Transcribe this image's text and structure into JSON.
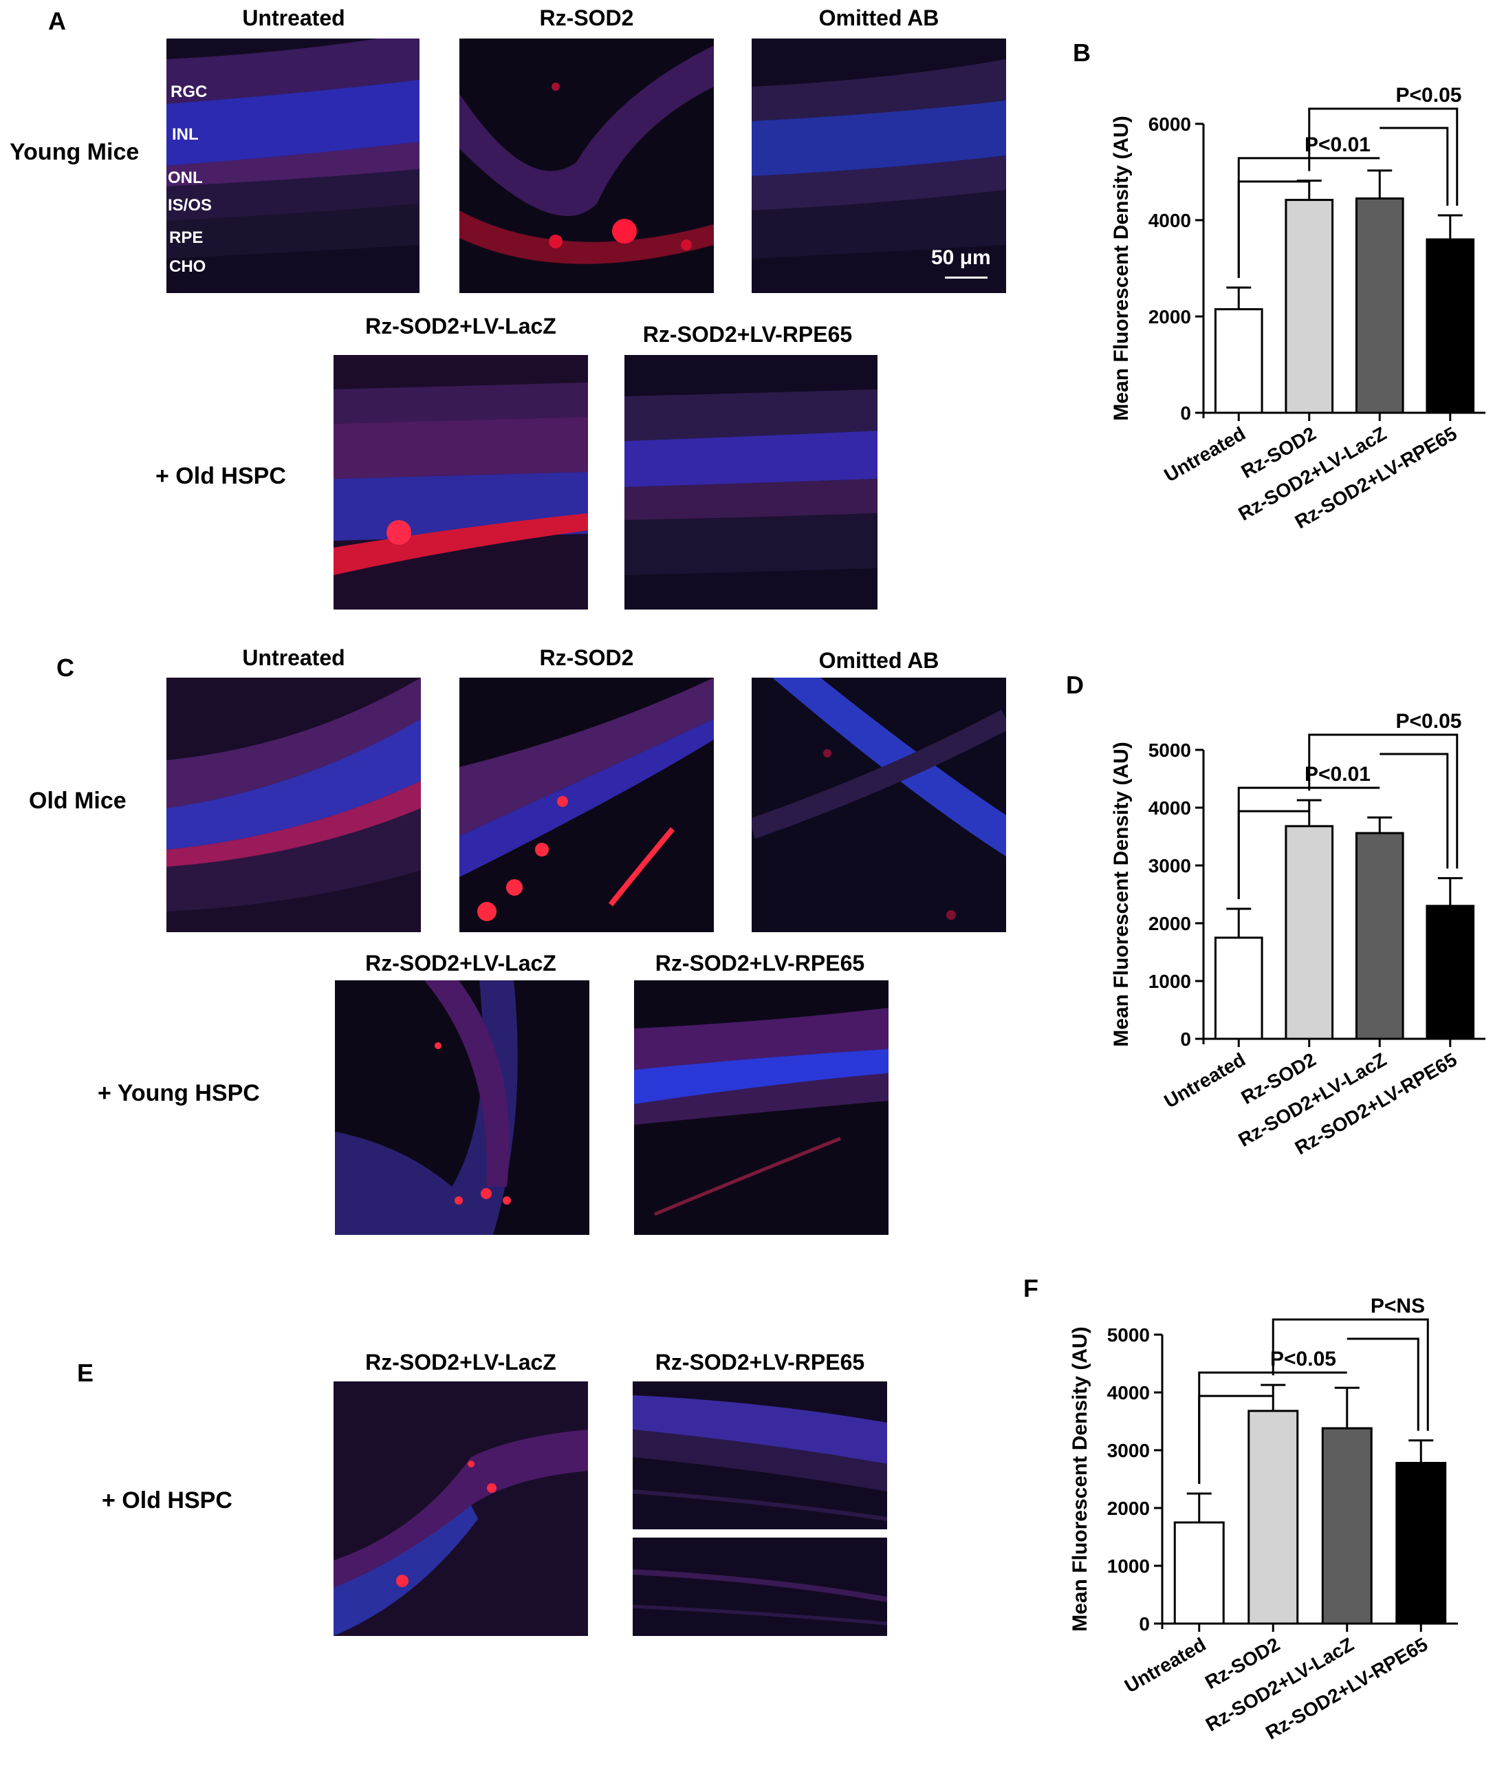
{
  "panels": {
    "A": {
      "letter": "A",
      "row_label": "Young Mice",
      "col_titles": [
        "Untreated",
        "Rz-SOD2",
        "Omitted AB"
      ],
      "layer_labels": [
        "RGC",
        "INL",
        "ONL",
        "IS/OS",
        "RPE",
        "CHO"
      ],
      "scale_bar": "50 μm",
      "hspc_label": "+ Old HSPC",
      "hspc_titles": [
        "Rz-SOD2+LV-LacZ",
        "Rz-SOD2+LV-RPE65"
      ]
    },
    "C": {
      "letter": "C",
      "row_label": "Old Mice",
      "col_titles": [
        "Untreated",
        "Rz-SOD2",
        "Omitted AB"
      ],
      "hspc_label": "+ Young HSPC",
      "hspc_titles": [
        "Rz-SOD2+LV-LacZ",
        "Rz-SOD2+LV-RPE65"
      ]
    },
    "E": {
      "letter": "E",
      "hspc_label": "+ Old HSPC",
      "hspc_titles": [
        "Rz-SOD2+LV-LacZ",
        "Rz-SOD2+LV-RPE65"
      ]
    }
  },
  "chart_data": [
    {
      "panel": "B",
      "type": "bar",
      "ylabel": "Mean Fluorescent Density (AU)",
      "categories": [
        "Untreated",
        "Rz-SOD2",
        "Rz-SOD2+LV-LacZ",
        "Rz-SOD2+LV-RPE65"
      ],
      "values": [
        2150,
        4420,
        4450,
        3600
      ],
      "errors": [
        450,
        400,
        580,
        500
      ],
      "bar_colors": [
        "#ffffff",
        "#d3d3d3",
        "#5e5e5e",
        "#000000"
      ],
      "ylim": [
        0,
        6000
      ],
      "yticks": [
        0,
        2000,
        4000,
        6000
      ],
      "annotations": [
        "P<0.01",
        "P<0.05"
      ]
    },
    {
      "panel": "D",
      "type": "bar",
      "ylabel": "Mean Fluorescent Density (AU)",
      "categories": [
        "Untreated",
        "Rz-SOD2",
        "Rz-SOD2+LV-LacZ",
        "Rz-SOD2+LV-RPE65"
      ],
      "values": [
        1750,
        3680,
        3560,
        2300
      ],
      "errors": [
        500,
        450,
        270,
        480
      ],
      "bar_colors": [
        "#ffffff",
        "#d3d3d3",
        "#5e5e5e",
        "#000000"
      ],
      "ylim": [
        0,
        5000
      ],
      "yticks": [
        0,
        1000,
        2000,
        3000,
        4000,
        5000
      ],
      "annotations": [
        "P<0.01",
        "P<0.05"
      ]
    },
    {
      "panel": "F",
      "type": "bar",
      "ylabel": "Mean Fluorescent Density (AU)",
      "categories": [
        "Untreated",
        "Rz-SOD2",
        "Rz-SOD2+LV-LacZ",
        "Rz-SOD2+LV-RPE65"
      ],
      "values": [
        1750,
        3680,
        3380,
        2780
      ],
      "errors": [
        500,
        450,
        700,
        390
      ],
      "bar_colors": [
        "#ffffff",
        "#d3d3d3",
        "#5e5e5e",
        "#000000"
      ],
      "ylim": [
        0,
        5000
      ],
      "yticks": [
        0,
        1000,
        2000,
        3000,
        4000,
        5000
      ],
      "annotations": [
        "P<0.05",
        "P<NS"
      ]
    }
  ]
}
